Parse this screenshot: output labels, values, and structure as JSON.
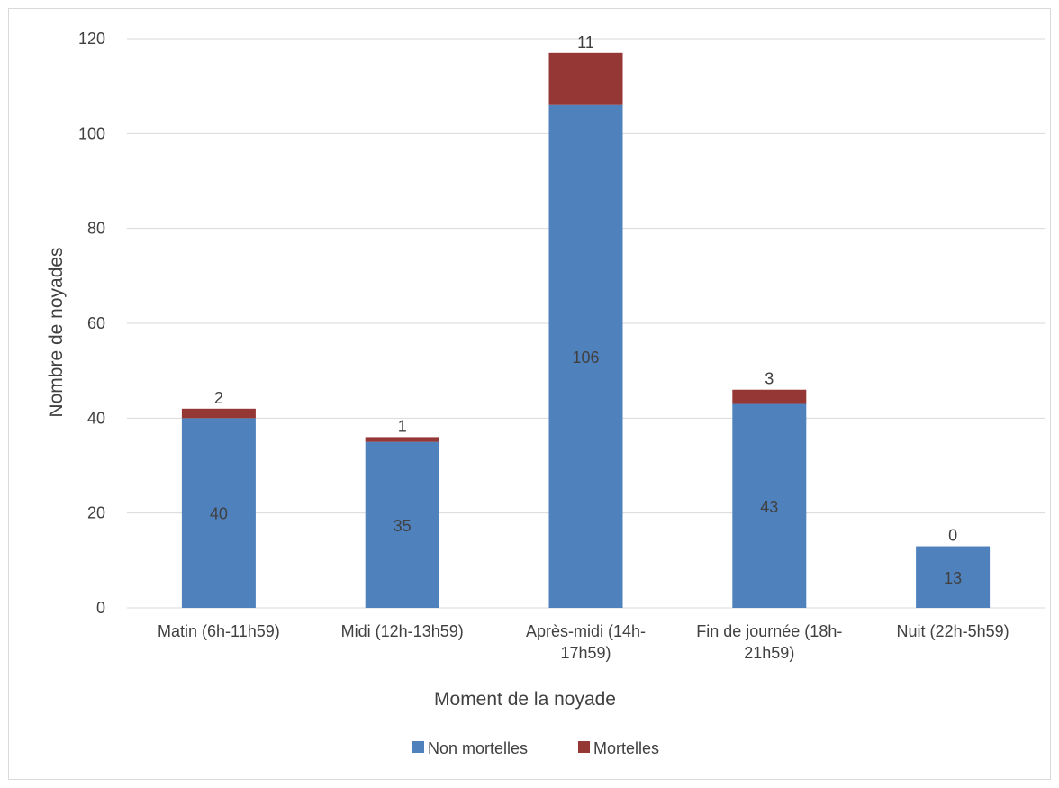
{
  "chart_data": {
    "type": "bar",
    "stacked": true,
    "title": "",
    "xlabel": "Moment de la noyade",
    "ylabel": "Nombre de noyades",
    "ylim": [
      0,
      120
    ],
    "yticks": [
      0,
      20,
      40,
      60,
      80,
      100,
      120
    ],
    "grid": true,
    "legend_position": "bottom",
    "categories": [
      [
        "Matin (6h-11h59)"
      ],
      [
        "Midi (12h-13h59)"
      ],
      [
        "Après-midi (14h-",
        "17h59)"
      ],
      [
        "Fin de journée (18h-",
        "21h59)"
      ],
      [
        "Nuit (22h-5h59)"
      ]
    ],
    "series": [
      {
        "name": "Non mortelles",
        "color": "#4f81bd",
        "values": [
          40,
          35,
          106,
          43,
          13
        ]
      },
      {
        "name": "Mortelles",
        "color": "#953735",
        "values": [
          2,
          1,
          11,
          3,
          0
        ]
      }
    ]
  }
}
